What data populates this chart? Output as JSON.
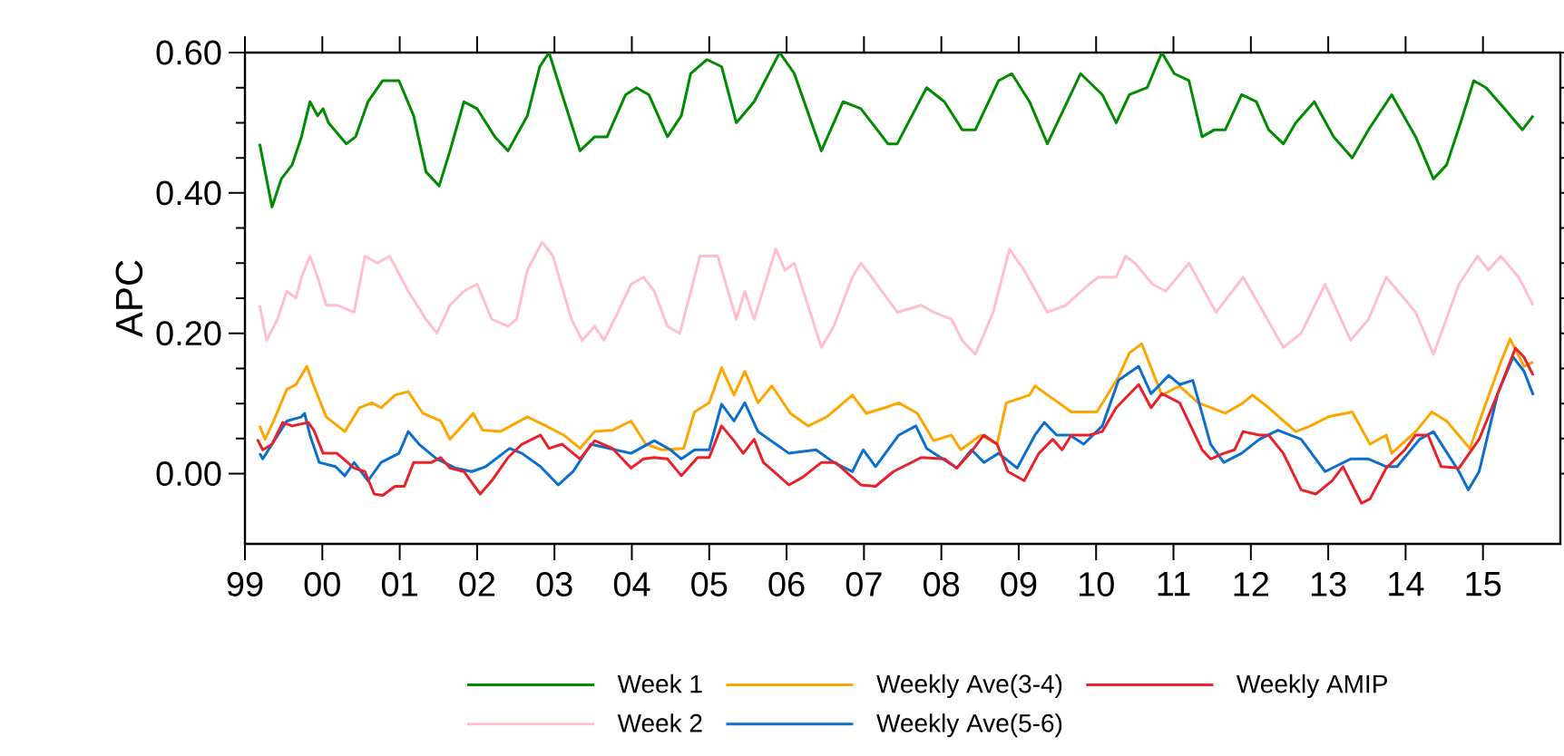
{
  "chart_data": {
    "type": "line",
    "ylabel": "APC",
    "xlim": [
      1999,
      2016
    ],
    "ylim": [
      -0.1,
      0.6
    ],
    "xticks": [
      {
        "value": 1999,
        "label": "99"
      },
      {
        "value": 2000,
        "label": "00"
      },
      {
        "value": 2001,
        "label": "01"
      },
      {
        "value": 2002,
        "label": "02"
      },
      {
        "value": 2003,
        "label": "03"
      },
      {
        "value": 2004,
        "label": "04"
      },
      {
        "value": 2005,
        "label": "05"
      },
      {
        "value": 2006,
        "label": "06"
      },
      {
        "value": 2007,
        "label": "07"
      },
      {
        "value": 2008,
        "label": "08"
      },
      {
        "value": 2009,
        "label": "09"
      },
      {
        "value": 2010,
        "label": "10"
      },
      {
        "value": 2011,
        "label": "11"
      },
      {
        "value": 2012,
        "label": "12"
      },
      {
        "value": 2013,
        "label": "13"
      },
      {
        "value": 2014,
        "label": "14"
      },
      {
        "value": 2015,
        "label": "15"
      }
    ],
    "yticks": [
      {
        "value": 0,
        "label": "0.00"
      },
      {
        "value": 0.2,
        "label": "0.20"
      },
      {
        "value": 0.4,
        "label": "0.40"
      },
      {
        "value": 0.6,
        "label": "0.60"
      }
    ],
    "legend": "bottom",
    "series": [
      {
        "name": "Week 1",
        "color": "#008c00",
        "x": [
          1999.19,
          1999.35,
          1999.47,
          1999.61,
          1999.73,
          1999.84,
          1999.94,
          2000.01,
          2000.08,
          2000.31,
          2000.43,
          2000.59,
          2000.78,
          2000.99,
          2001.18,
          2001.34,
          2001.51,
          2001.65,
          2001.83,
          2002.0,
          2002.23,
          2002.4,
          2002.65,
          2002.81,
          2002.93,
          2003.1,
          2003.33,
          2003.52,
          2003.68,
          2003.92,
          2004.06,
          2004.22,
          2004.46,
          2004.64,
          2004.76,
          2004.97,
          2005.16,
          2005.35,
          2005.58,
          2005.91,
          2006.1,
          2006.45,
          2006.73,
          2006.96,
          2007.31,
          2007.43,
          2007.81,
          2008.04,
          2008.27,
          2008.44,
          2008.74,
          2008.91,
          2009.14,
          2009.37,
          2009.8,
          2010.08,
          2010.26,
          2010.43,
          2010.66,
          2010.85,
          2011.01,
          2011.2,
          2011.37,
          2011.53,
          2011.67,
          2011.88,
          2012.07,
          2012.23,
          2012.42,
          2012.58,
          2012.82,
          2013.07,
          2013.31,
          2013.52,
          2013.82,
          2014.13,
          2014.36,
          2014.53,
          2014.71,
          2014.88,
          2015.04,
          2015.28,
          2015.51,
          2015.65
        ],
        "values": [
          0.47,
          0.38,
          0.42,
          0.44,
          0.48,
          0.53,
          0.51,
          0.52,
          0.5,
          0.47,
          0.48,
          0.53,
          0.56,
          0.56,
          0.51,
          0.43,
          0.41,
          0.46,
          0.53,
          0.52,
          0.48,
          0.46,
          0.51,
          0.58,
          0.6,
          0.54,
          0.46,
          0.48,
          0.48,
          0.54,
          0.55,
          0.54,
          0.48,
          0.51,
          0.57,
          0.59,
          0.58,
          0.5,
          0.53,
          0.6,
          0.57,
          0.46,
          0.53,
          0.52,
          0.47,
          0.47,
          0.55,
          0.53,
          0.49,
          0.49,
          0.56,
          0.57,
          0.53,
          0.47,
          0.57,
          0.54,
          0.5,
          0.54,
          0.55,
          0.6,
          0.57,
          0.56,
          0.48,
          0.49,
          0.49,
          0.54,
          0.53,
          0.49,
          0.47,
          0.5,
          0.53,
          0.48,
          0.45,
          0.49,
          0.54,
          0.48,
          0.42,
          0.44,
          0.5,
          0.56,
          0.55,
          0.52,
          0.49,
          0.51
        ]
      },
      {
        "name": "Week 2",
        "color": "#ffc0cb",
        "x": [
          1999.19,
          1999.28,
          1999.42,
          1999.54,
          1999.66,
          1999.73,
          1999.84,
          1999.94,
          2000.05,
          2000.19,
          2000.41,
          2000.55,
          2000.71,
          2000.87,
          2001.11,
          2001.34,
          2001.48,
          2001.65,
          2001.83,
          2002.0,
          2002.19,
          2002.4,
          2002.51,
          2002.65,
          2002.84,
          2002.98,
          2003.22,
          2003.36,
          2003.52,
          2003.64,
          2003.82,
          2003.99,
          2004.15,
          2004.29,
          2004.46,
          2004.62,
          2004.88,
          2005.11,
          2005.35,
          2005.46,
          2005.58,
          2005.86,
          2005.98,
          2006.1,
          2006.45,
          2006.61,
          2006.85,
          2006.96,
          2007.1,
          2007.43,
          2007.74,
          2007.9,
          2008.13,
          2008.27,
          2008.44,
          2008.67,
          2008.88,
          2009.07,
          2009.37,
          2009.61,
          2009.91,
          2010.03,
          2010.26,
          2010.38,
          2010.5,
          2010.73,
          2010.9,
          2011.2,
          2011.55,
          2011.9,
          2012.11,
          2012.42,
          2012.65,
          2012.96,
          2013.29,
          2013.52,
          2013.75,
          2014.13,
          2014.36,
          2014.69,
          2014.93,
          2015.07,
          2015.23,
          2015.46,
          2015.65
        ],
        "values": [
          0.24,
          0.19,
          0.22,
          0.26,
          0.25,
          0.28,
          0.31,
          0.28,
          0.24,
          0.24,
          0.23,
          0.31,
          0.3,
          0.31,
          0.26,
          0.22,
          0.2,
          0.24,
          0.26,
          0.27,
          0.22,
          0.21,
          0.22,
          0.29,
          0.33,
          0.31,
          0.22,
          0.19,
          0.21,
          0.19,
          0.23,
          0.27,
          0.28,
          0.26,
          0.21,
          0.2,
          0.31,
          0.31,
          0.22,
          0.26,
          0.22,
          0.32,
          0.29,
          0.3,
          0.18,
          0.21,
          0.28,
          0.3,
          0.28,
          0.23,
          0.24,
          0.23,
          0.22,
          0.19,
          0.17,
          0.23,
          0.32,
          0.29,
          0.23,
          0.24,
          0.27,
          0.28,
          0.28,
          0.31,
          0.3,
          0.27,
          0.26,
          0.3,
          0.23,
          0.28,
          0.24,
          0.18,
          0.2,
          0.27,
          0.19,
          0.22,
          0.28,
          0.23,
          0.17,
          0.27,
          0.31,
          0.29,
          0.31,
          0.28,
          0.24
        ]
      },
      {
        "name": "Weekly Ave(3-4)",
        "color": "#ffa500",
        "x": [
          1999.19,
          1999.26,
          1999.37,
          1999.54,
          1999.66,
          1999.8,
          1999.89,
          2000.05,
          2000.29,
          2000.48,
          2000.64,
          2000.76,
          2000.94,
          2001.11,
          2001.3,
          2001.53,
          2001.65,
          2001.95,
          2002.07,
          2002.3,
          2002.65,
          2002.89,
          2003.12,
          2003.33,
          2003.52,
          2003.75,
          2003.99,
          2004.18,
          2004.39,
          2004.67,
          2004.81,
          2005.0,
          2005.16,
          2005.32,
          2005.46,
          2005.63,
          2005.81,
          2006.05,
          2006.28,
          2006.52,
          2006.85,
          2007.03,
          2007.27,
          2007.45,
          2007.69,
          2007.9,
          2008.13,
          2008.25,
          2008.51,
          2008.72,
          2008.84,
          2009.14,
          2009.21,
          2009.54,
          2009.68,
          2010.01,
          2010.29,
          2010.43,
          2010.59,
          2010.71,
          2010.85,
          2011.08,
          2011.32,
          2011.67,
          2011.9,
          2012.02,
          2012.23,
          2012.58,
          2012.77,
          2013.0,
          2013.31,
          2013.54,
          2013.75,
          2013.82,
          2014.13,
          2014.34,
          2014.53,
          2014.83,
          2015.04,
          2015.23,
          2015.35,
          2015.53,
          2015.65
        ],
        "values": [
          0.068,
          0.049,
          0.075,
          0.12,
          0.127,
          0.153,
          0.125,
          0.081,
          0.06,
          0.094,
          0.101,
          0.094,
          0.112,
          0.117,
          0.086,
          0.075,
          0.049,
          0.086,
          0.062,
          0.06,
          0.081,
          0.068,
          0.055,
          0.036,
          0.06,
          0.062,
          0.075,
          0.042,
          0.034,
          0.036,
          0.088,
          0.101,
          0.151,
          0.112,
          0.146,
          0.101,
          0.125,
          0.086,
          0.068,
          0.081,
          0.112,
          0.086,
          0.094,
          0.101,
          0.086,
          0.047,
          0.055,
          0.034,
          0.055,
          0.042,
          0.101,
          0.112,
          0.125,
          0.099,
          0.088,
          0.088,
          0.138,
          0.172,
          0.185,
          0.151,
          0.112,
          0.125,
          0.101,
          0.086,
          0.101,
          0.112,
          0.094,
          0.06,
          0.068,
          0.081,
          0.088,
          0.042,
          0.055,
          0.029,
          0.06,
          0.088,
          0.075,
          0.036,
          0.101,
          0.159,
          0.192,
          0.153,
          0.159
        ]
      },
      {
        "name": "Weekly Ave(5-6)",
        "color": "#0a6fcf",
        "x": [
          1999.19,
          1999.23,
          1999.35,
          1999.54,
          1999.73,
          1999.77,
          1999.84,
          1999.96,
          2000.17,
          2000.29,
          2000.41,
          2000.59,
          2000.76,
          2000.99,
          2001.11,
          2001.25,
          2001.48,
          2001.72,
          2001.93,
          2002.11,
          2002.42,
          2002.58,
          2002.82,
          2003.05,
          2003.24,
          2003.47,
          2003.71,
          2003.99,
          2004.29,
          2004.5,
          2004.64,
          2004.81,
          2005.0,
          2005.16,
          2005.32,
          2005.46,
          2005.63,
          2006.03,
          2006.38,
          2006.61,
          2006.85,
          2006.99,
          2007.15,
          2007.45,
          2007.67,
          2007.81,
          2008.2,
          2008.39,
          2008.55,
          2008.74,
          2008.98,
          2009.21,
          2009.33,
          2009.49,
          2009.66,
          2009.84,
          2010.08,
          2010.29,
          2010.55,
          2010.71,
          2010.94,
          2011.08,
          2011.25,
          2011.48,
          2011.65,
          2011.88,
          2012.11,
          2012.35,
          2012.65,
          2012.96,
          2013.29,
          2013.52,
          2013.75,
          2013.89,
          2014.18,
          2014.36,
          2014.69,
          2014.81,
          2014.95,
          2015.19,
          2015.39,
          2015.53,
          2015.65
        ],
        "values": [
          0.029,
          0.021,
          0.042,
          0.075,
          0.081,
          0.086,
          0.055,
          0.016,
          0.01,
          -0.003,
          0.016,
          -0.01,
          0.016,
          0.029,
          0.06,
          0.042,
          0.021,
          0.008,
          0.003,
          0.01,
          0.036,
          0.029,
          0.01,
          -0.016,
          0.003,
          0.042,
          0.036,
          0.029,
          0.047,
          0.034,
          0.021,
          0.034,
          0.034,
          0.099,
          0.075,
          0.101,
          0.06,
          0.029,
          0.034,
          0.016,
          0.003,
          0.034,
          0.01,
          0.055,
          0.068,
          0.036,
          0.008,
          0.034,
          0.016,
          0.029,
          0.008,
          0.055,
          0.073,
          0.055,
          0.055,
          0.042,
          0.068,
          0.133,
          0.153,
          0.114,
          0.14,
          0.127,
          0.133,
          0.042,
          0.016,
          0.029,
          0.049,
          0.062,
          0.049,
          0.003,
          0.021,
          0.021,
          0.01,
          0.01,
          0.049,
          0.06,
          0.003,
          -0.023,
          0.003,
          0.114,
          0.166,
          0.146,
          0.112
        ]
      },
      {
        "name": "Weekly AMIP",
        "color": "#e8212a",
        "x": [
          1999.16,
          1999.23,
          1999.35,
          1999.49,
          1999.61,
          1999.82,
          1999.89,
          2000.01,
          2000.19,
          2000.41,
          2000.55,
          2000.67,
          2000.78,
          2000.94,
          2001.06,
          2001.18,
          2001.41,
          2001.53,
          2001.65,
          2001.83,
          2002.04,
          2002.19,
          2002.4,
          2002.58,
          2002.82,
          2002.93,
          2003.1,
          2003.33,
          2003.52,
          2003.75,
          2003.99,
          2004.15,
          2004.29,
          2004.46,
          2004.64,
          2004.85,
          2005.0,
          2005.16,
          2005.32,
          2005.44,
          2005.58,
          2005.7,
          2006.03,
          2006.21,
          2006.45,
          2006.63,
          2006.96,
          2007.15,
          2007.38,
          2007.74,
          2008.04,
          2008.2,
          2008.37,
          2008.55,
          2008.72,
          2008.86,
          2009.07,
          2009.26,
          2009.44,
          2009.56,
          2009.68,
          2009.91,
          2010.08,
          2010.26,
          2010.55,
          2010.71,
          2010.85,
          2011.08,
          2011.37,
          2011.48,
          2011.65,
          2011.79,
          2011.9,
          2012.11,
          2012.23,
          2012.42,
          2012.65,
          2012.84,
          2013.05,
          2013.19,
          2013.43,
          2013.54,
          2013.75,
          2013.99,
          2014.13,
          2014.29,
          2014.46,
          2014.69,
          2014.95,
          2015.19,
          2015.42,
          2015.53,
          2015.65
        ],
        "values": [
          0.049,
          0.034,
          0.042,
          0.073,
          0.068,
          0.073,
          0.062,
          0.029,
          0.029,
          0.008,
          0.003,
          -0.029,
          -0.031,
          -0.018,
          -0.018,
          0.016,
          0.016,
          0.023,
          0.008,
          0.003,
          -0.029,
          -0.01,
          0.023,
          0.042,
          0.055,
          0.036,
          0.042,
          0.021,
          0.047,
          0.036,
          0.008,
          0.021,
          0.023,
          0.021,
          -0.003,
          0.023,
          0.023,
          0.068,
          0.047,
          0.029,
          0.049,
          0.016,
          -0.016,
          -0.005,
          0.016,
          0.016,
          -0.016,
          -0.018,
          0.003,
          0.023,
          0.021,
          0.008,
          0.029,
          0.055,
          0.042,
          0.003,
          -0.01,
          0.029,
          0.049,
          0.034,
          0.055,
          0.055,
          0.06,
          0.094,
          0.127,
          0.094,
          0.114,
          0.101,
          0.034,
          0.021,
          0.029,
          0.034,
          0.06,
          0.055,
          0.055,
          0.029,
          -0.023,
          -0.029,
          -0.01,
          0.01,
          -0.042,
          -0.036,
          0.008,
          0.034,
          0.055,
          0.055,
          0.01,
          0.008,
          0.049,
          0.114,
          0.179,
          0.166,
          0.14
        ]
      }
    ]
  }
}
